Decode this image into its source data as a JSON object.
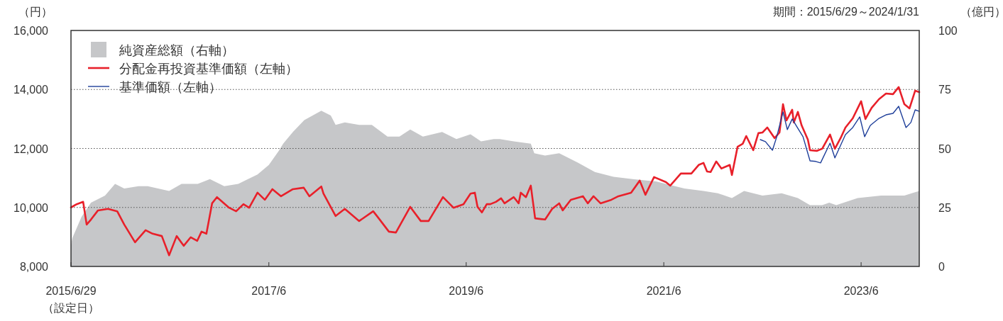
{
  "chart_data": {
    "type": "line",
    "ylabel": "（円）",
    "y2label": "（億円）",
    "annotations": [
      "期間：2015/6/29～2024/1/31",
      "（設定日）"
    ],
    "xlim": [
      "2015-06-29",
      "2024-01-31"
    ],
    "xticks": [
      {
        "value": "2015-06-29",
        "label": "2015/6/29"
      },
      {
        "value": "2017-06-30",
        "label": "2017/6"
      },
      {
        "value": "2019-06-30",
        "label": "2019/6"
      },
      {
        "value": "2021-06-30",
        "label": "2021/6"
      },
      {
        "value": "2023-06-30",
        "label": "2023/6"
      }
    ],
    "ylim": [
      8000,
      16000
    ],
    "yticks": [
      {
        "value": 8000,
        "label": "8,000"
      },
      {
        "value": 10000,
        "label": "10,000"
      },
      {
        "value": 12000,
        "label": "12,000"
      },
      {
        "value": 14000,
        "label": "14,000"
      },
      {
        "value": 16000,
        "label": "16,000"
      }
    ],
    "y2lim": [
      0,
      100
    ],
    "y2ticks": [
      0,
      25,
      50,
      75,
      100
    ],
    "grid": "y",
    "legend": "top left",
    "series": [
      {
        "name": "純資産総額（右軸）",
        "type": "area",
        "axis": "y2",
        "color": "#c6c7c9",
        "x": [
          "2015-06-29",
          "2015-07-04",
          "2015-08-07",
          "2015-09-11",
          "2015-11-02",
          "2015-12-09",
          "2016-01-12",
          "2016-03-05",
          "2016-04-08",
          "2016-06-26",
          "2016-08-11",
          "2016-10-10",
          "2016-11-24",
          "2017-01-16",
          "2017-03-09",
          "2017-05-19",
          "2017-06-30",
          "2017-08-06",
          "2017-08-22",
          "2017-09-27",
          "2017-11-08",
          "2018-01-10",
          "2018-02-14",
          "2018-03-04",
          "2018-04-07",
          "2018-05-30",
          "2018-07-16",
          "2018-09-12",
          "2018-10-26",
          "2018-12-05",
          "2019-01-21",
          "2019-04-02",
          "2019-05-25",
          "2019-07-16",
          "2019-08-24",
          "2019-10-10",
          "2019-11-01",
          "2019-12-23",
          "2020-02-24",
          "2020-03-08",
          "2020-04-17",
          "2020-06-08",
          "2020-08-16",
          "2020-10-18",
          "2020-12-26",
          "2021-03-07",
          "2021-06-01",
          "2021-09-14",
          "2021-11-24",
          "2022-01-16",
          "2022-03-09",
          "2022-04-23",
          "2022-06-30",
          "2022-09-09",
          "2022-11-08",
          "2022-12-23",
          "2023-02-06",
          "2023-03-04",
          "2023-03-30",
          "2023-06-17",
          "2023-09-12",
          "2023-12-07",
          "2024-01-03",
          "2024-01-31"
        ],
        "values": [
          9,
          12,
          21,
          27,
          30,
          35,
          33,
          34,
          34,
          32,
          35,
          35,
          37,
          34,
          35,
          39,
          43,
          49,
          52,
          57,
          62,
          66,
          64,
          60,
          61,
          60,
          60,
          55,
          55,
          58,
          55,
          57,
          54,
          56,
          53,
          54,
          54,
          53,
          52,
          48,
          47,
          48,
          44,
          40,
          38,
          37,
          36,
          33,
          32,
          31,
          29,
          32,
          30,
          31,
          29,
          26,
          26,
          27,
          26,
          29,
          30,
          30,
          31,
          32
        ]
      },
      {
        "name": "分配金再投資基準価額（左軸）",
        "color": "#e8202a",
        "x": [
          "2015-06-29",
          "2015-07-20",
          "2015-08-13",
          "2015-08-26",
          "2015-09-11",
          "2015-10-07",
          "2015-11-13",
          "2015-12-17",
          "2016-01-12",
          "2016-02-21",
          "2016-03-31",
          "2016-04-26",
          "2016-05-30",
          "2016-06-26",
          "2016-07-24",
          "2016-08-19",
          "2016-09-14",
          "2016-10-08",
          "2016-10-24",
          "2016-11-11",
          "2016-12-02",
          "2016-12-20",
          "2017-02-03",
          "2017-03-01",
          "2017-03-28",
          "2017-04-18",
          "2017-05-19",
          "2017-06-15",
          "2017-07-13",
          "2017-08-14",
          "2017-09-27",
          "2017-11-06",
          "2017-11-27",
          "2018-01-10",
          "2018-01-18",
          "2018-03-04",
          "2018-04-07",
          "2018-05-30",
          "2018-07-21",
          "2018-08-08",
          "2018-09-17",
          "2018-10-13",
          "2018-12-05",
          "2019-01-13",
          "2019-02-11",
          "2019-04-05",
          "2019-05-14",
          "2019-06-20",
          "2019-07-16",
          "2019-08-01",
          "2019-08-11",
          "2019-08-27",
          "2019-09-14",
          "2019-09-27",
          "2019-10-18",
          "2019-11-06",
          "2019-11-19",
          "2019-12-23",
          "2020-01-10",
          "2020-01-18",
          "2020-02-06",
          "2020-02-24",
          "2020-03-11",
          "2020-04-17",
          "2020-05-13",
          "2020-06-08",
          "2020-06-21",
          "2020-07-21",
          "2020-09-04",
          "2020-09-22",
          "2020-10-13",
          "2020-11-08",
          "2020-12-18",
          "2021-01-13",
          "2021-03-01",
          "2021-04-02",
          "2021-04-23",
          "2021-05-25",
          "2021-07-08",
          "2021-07-24",
          "2021-09-01",
          "2021-10-10",
          "2021-11-06",
          "2021-11-24",
          "2021-12-07",
          "2021-12-20",
          "2022-01-10",
          "2022-01-29",
          "2022-03-01",
          "2022-03-09",
          "2022-03-30",
          "2022-04-18",
          "2022-05-01",
          "2022-05-27",
          "2022-06-15",
          "2022-06-30",
          "2022-07-18",
          "2022-08-14",
          "2022-09-01",
          "2022-09-14",
          "2022-09-27",
          "2022-10-18",
          "2022-10-24",
          "2022-11-08",
          "2022-11-22",
          "2022-12-15",
          "2022-12-23",
          "2023-01-18",
          "2023-02-06",
          "2023-03-07",
          "2023-03-25",
          "2023-04-15",
          "2023-05-03",
          "2023-05-30",
          "2023-06-30",
          "2023-07-16",
          "2023-08-08",
          "2023-09-04",
          "2023-09-30",
          "2023-10-26",
          "2023-11-16",
          "2023-12-07",
          "2023-12-26",
          "2024-01-16",
          "2024-01-31"
        ],
        "values": [
          10000,
          10110,
          10190,
          9420,
          9590,
          9900,
          9950,
          9870,
          9420,
          8820,
          9230,
          9110,
          9030,
          8380,
          9030,
          8700,
          8990,
          8870,
          9180,
          9110,
          10140,
          10350,
          9990,
          9870,
          10110,
          9990,
          10500,
          10260,
          10620,
          10380,
          10620,
          10670,
          10380,
          10710,
          10470,
          9710,
          9950,
          9540,
          9870,
          9660,
          9180,
          9150,
          10020,
          9540,
          9540,
          10350,
          9990,
          10110,
          10470,
          10500,
          10020,
          9830,
          10110,
          10110,
          10190,
          10310,
          10140,
          10350,
          10140,
          10500,
          10350,
          10740,
          9630,
          9590,
          9950,
          10140,
          9900,
          10260,
          10380,
          10140,
          10380,
          10140,
          10260,
          10380,
          10500,
          10910,
          10430,
          11030,
          10860,
          10740,
          11150,
          11150,
          11440,
          11510,
          11220,
          11200,
          11560,
          11320,
          11440,
          11100,
          12060,
          12160,
          12420,
          11940,
          12520,
          12540,
          12710,
          12350,
          12540,
          13500,
          12950,
          13310,
          12880,
          13240,
          12780,
          12300,
          11940,
          11920,
          11990,
          12470,
          11990,
          12350,
          12710,
          13020,
          13600,
          13000,
          13380,
          13670,
          13860,
          13840,
          14080,
          13500,
          13360,
          13960,
          13910
        ]
      },
      {
        "name": "基準価額（左軸）",
        "color": "#1f3f9a",
        "x": [
          "2022-06-22",
          "2022-07-11",
          "2022-08-06",
          "2022-08-22",
          "2022-09-14",
          "2022-09-30",
          "2022-10-18",
          "2022-11-06",
          "2022-11-27",
          "2022-12-23",
          "2023-01-13",
          "2023-01-31",
          "2023-03-07",
          "2023-03-25",
          "2023-05-03",
          "2023-05-30",
          "2023-06-25",
          "2023-07-13",
          "2023-08-03",
          "2023-09-04",
          "2023-09-30",
          "2023-10-26",
          "2023-11-16",
          "2023-12-13",
          "2023-12-31",
          "2024-01-16",
          "2024-01-31"
        ],
        "values": [
          12300,
          12230,
          11940,
          12400,
          13240,
          12640,
          13000,
          12710,
          12400,
          11580,
          11560,
          11510,
          12180,
          11680,
          12470,
          12710,
          13070,
          12400,
          12780,
          13020,
          13140,
          13190,
          13430,
          12710,
          12880,
          13310,
          13260
        ]
      }
    ]
  }
}
